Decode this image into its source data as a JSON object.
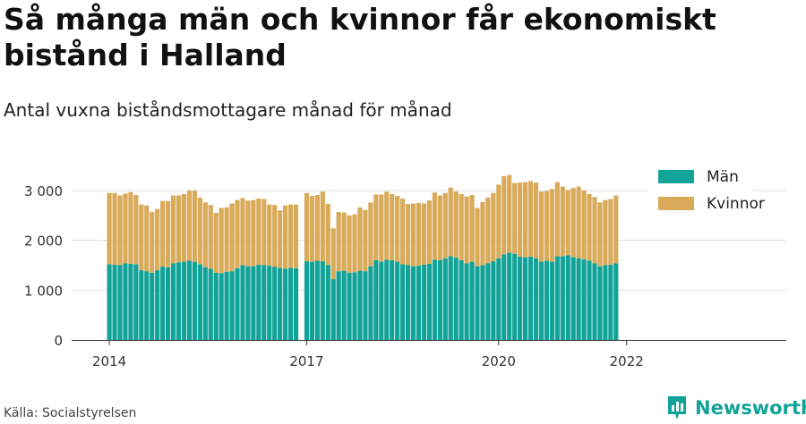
{
  "header": {
    "title": "Så många män och kvinnor får ekonomiskt bistånd i Halland",
    "subtitle": "Antal vuxna biståndsmottagare månad för månad"
  },
  "footer": {
    "source": "Källa: Socialstyrelsen",
    "brand": "Newsworthy"
  },
  "chart_data": {
    "type": "bar",
    "stacked": true,
    "title": "Så många män och kvinnor får ekonomiskt bistånd i Halland",
    "subtitle": "Antal vuxna biståndsmottagare månad för månad",
    "xlabel": "",
    "ylabel": "",
    "ylim": [
      0,
      3300
    ],
    "yticks": [
      0,
      1000,
      2000,
      3000
    ],
    "ytick_labels": [
      "0",
      "1 000",
      "2 000",
      "3 000"
    ],
    "xticks": [
      "2014",
      "2017",
      "2020",
      "2022"
    ],
    "xtick_positions": [
      "2014-01",
      "2017-01",
      "2020-01",
      "2022-01"
    ],
    "legend": "top-right",
    "colors": {
      "men": "#12a398",
      "women": "#d9aa5a",
      "grid": "#dddddd",
      "axis": "#333333"
    },
    "start": "2014-01",
    "gap_after": "2016-12",
    "gap_months": 1,
    "series": [
      {
        "name": "Män",
        "values": [
          1520,
          1510,
          1500,
          1540,
          1530,
          1520,
          1400,
          1380,
          1350,
          1400,
          1470,
          1460,
          1540,
          1560,
          1570,
          1590,
          1570,
          1520,
          1460,
          1430,
          1350,
          1340,
          1370,
          1380,
          1440,
          1500,
          1480,
          1480,
          1510,
          1500,
          1490,
          1470,
          1450,
          1430,
          1450,
          1440,
          1580,
          1570,
          1590,
          1580,
          1500,
          1220,
          1380,
          1390,
          1350,
          1360,
          1390,
          1380,
          1480,
          1600,
          1570,
          1610,
          1600,
          1570,
          1520,
          1500,
          1480,
          1490,
          1510,
          1530,
          1610,
          1600,
          1640,
          1680,
          1650,
          1600,
          1540,
          1570,
          1480,
          1500,
          1540,
          1580,
          1640,
          1720,
          1750,
          1730,
          1670,
          1660,
          1670,
          1640,
          1570,
          1590,
          1570,
          1680,
          1680,
          1700,
          1660,
          1640,
          1620,
          1590,
          1540,
          1480,
          1500,
          1510,
          1540
        ]
      },
      {
        "name": "Kvinnor",
        "values": [
          1430,
          1440,
          1400,
          1400,
          1440,
          1390,
          1320,
          1320,
          1220,
          1230,
          1320,
          1330,
          1360,
          1340,
          1360,
          1410,
          1430,
          1340,
          1300,
          1280,
          1200,
          1310,
          1290,
          1360,
          1370,
          1350,
          1320,
          1330,
          1330,
          1330,
          1230,
          1240,
          1150,
          1270,
          1270,
          1280,
          1370,
          1320,
          1320,
          1400,
          1230,
          1020,
          1190,
          1170,
          1150,
          1160,
          1270,
          1230,
          1280,
          1320,
          1350,
          1370,
          1330,
          1320,
          1320,
          1230,
          1260,
          1260,
          1230,
          1270,
          1350,
          1300,
          1310,
          1380,
          1330,
          1330,
          1340,
          1340,
          1170,
          1270,
          1320,
          1370,
          1480,
          1570,
          1560,
          1420,
          1490,
          1510,
          1520,
          1520,
          1410,
          1400,
          1460,
          1490,
          1400,
          1310,
          1390,
          1440,
          1380,
          1340,
          1330,
          1280,
          1310,
          1320,
          1360
        ]
      }
    ]
  }
}
